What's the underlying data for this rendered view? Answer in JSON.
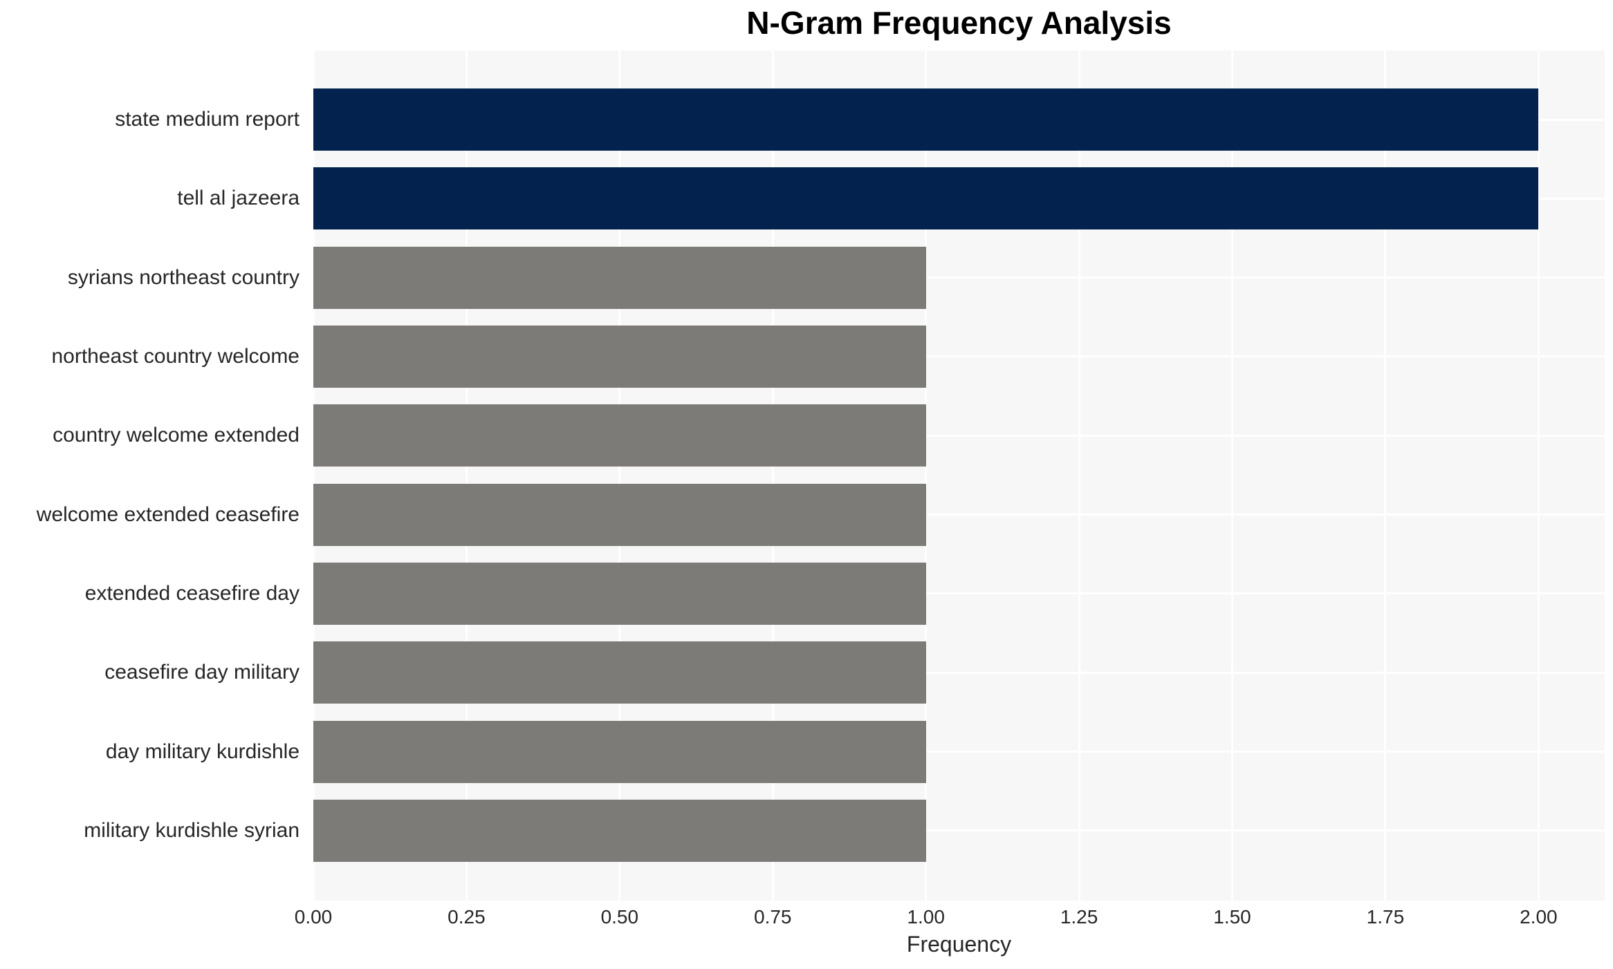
{
  "page": {
    "background": "#FFFFFF"
  },
  "chart_data": {
    "type": "bar",
    "orientation": "horizontal",
    "title": "N-Gram Frequency Analysis",
    "xlabel": "Frequency",
    "ylabel": "",
    "categories": [
      "state medium report",
      "tell al jazeera",
      "syrians northeast country",
      "northeast country welcome",
      "country welcome extended",
      "welcome extended ceasefire",
      "extended ceasefire day",
      "ceasefire day military",
      "day military kurdishle",
      "military kurdishle syrian"
    ],
    "values": [
      2,
      2,
      1,
      1,
      1,
      1,
      1,
      1,
      1,
      1
    ],
    "bar_colors": [
      "#03234E",
      "#03234E",
      "#7C7B78",
      "#7C7B78",
      "#7C7B78",
      "#7C7B78",
      "#7C7B78",
      "#7C7B78",
      "#7C7B78",
      "#7C7B78"
    ],
    "xlim": [
      0,
      2.108
    ],
    "xticks": [
      {
        "value": 0.0,
        "label": "0.00"
      },
      {
        "value": 0.25,
        "label": "0.25"
      },
      {
        "value": 0.5,
        "label": "0.50"
      },
      {
        "value": 0.75,
        "label": "0.75"
      },
      {
        "value": 1.0,
        "label": "1.00"
      },
      {
        "value": 1.25,
        "label": "1.25"
      },
      {
        "value": 1.5,
        "label": "1.50"
      },
      {
        "value": 1.75,
        "label": "1.75"
      },
      {
        "value": 2.0,
        "label": "2.00"
      }
    ],
    "grid": "on",
    "legend": "none",
    "plot_background": "#F7F7F7",
    "grid_color": "#FFFFFF",
    "text_color": "#262626",
    "title_color": "#000000"
  }
}
